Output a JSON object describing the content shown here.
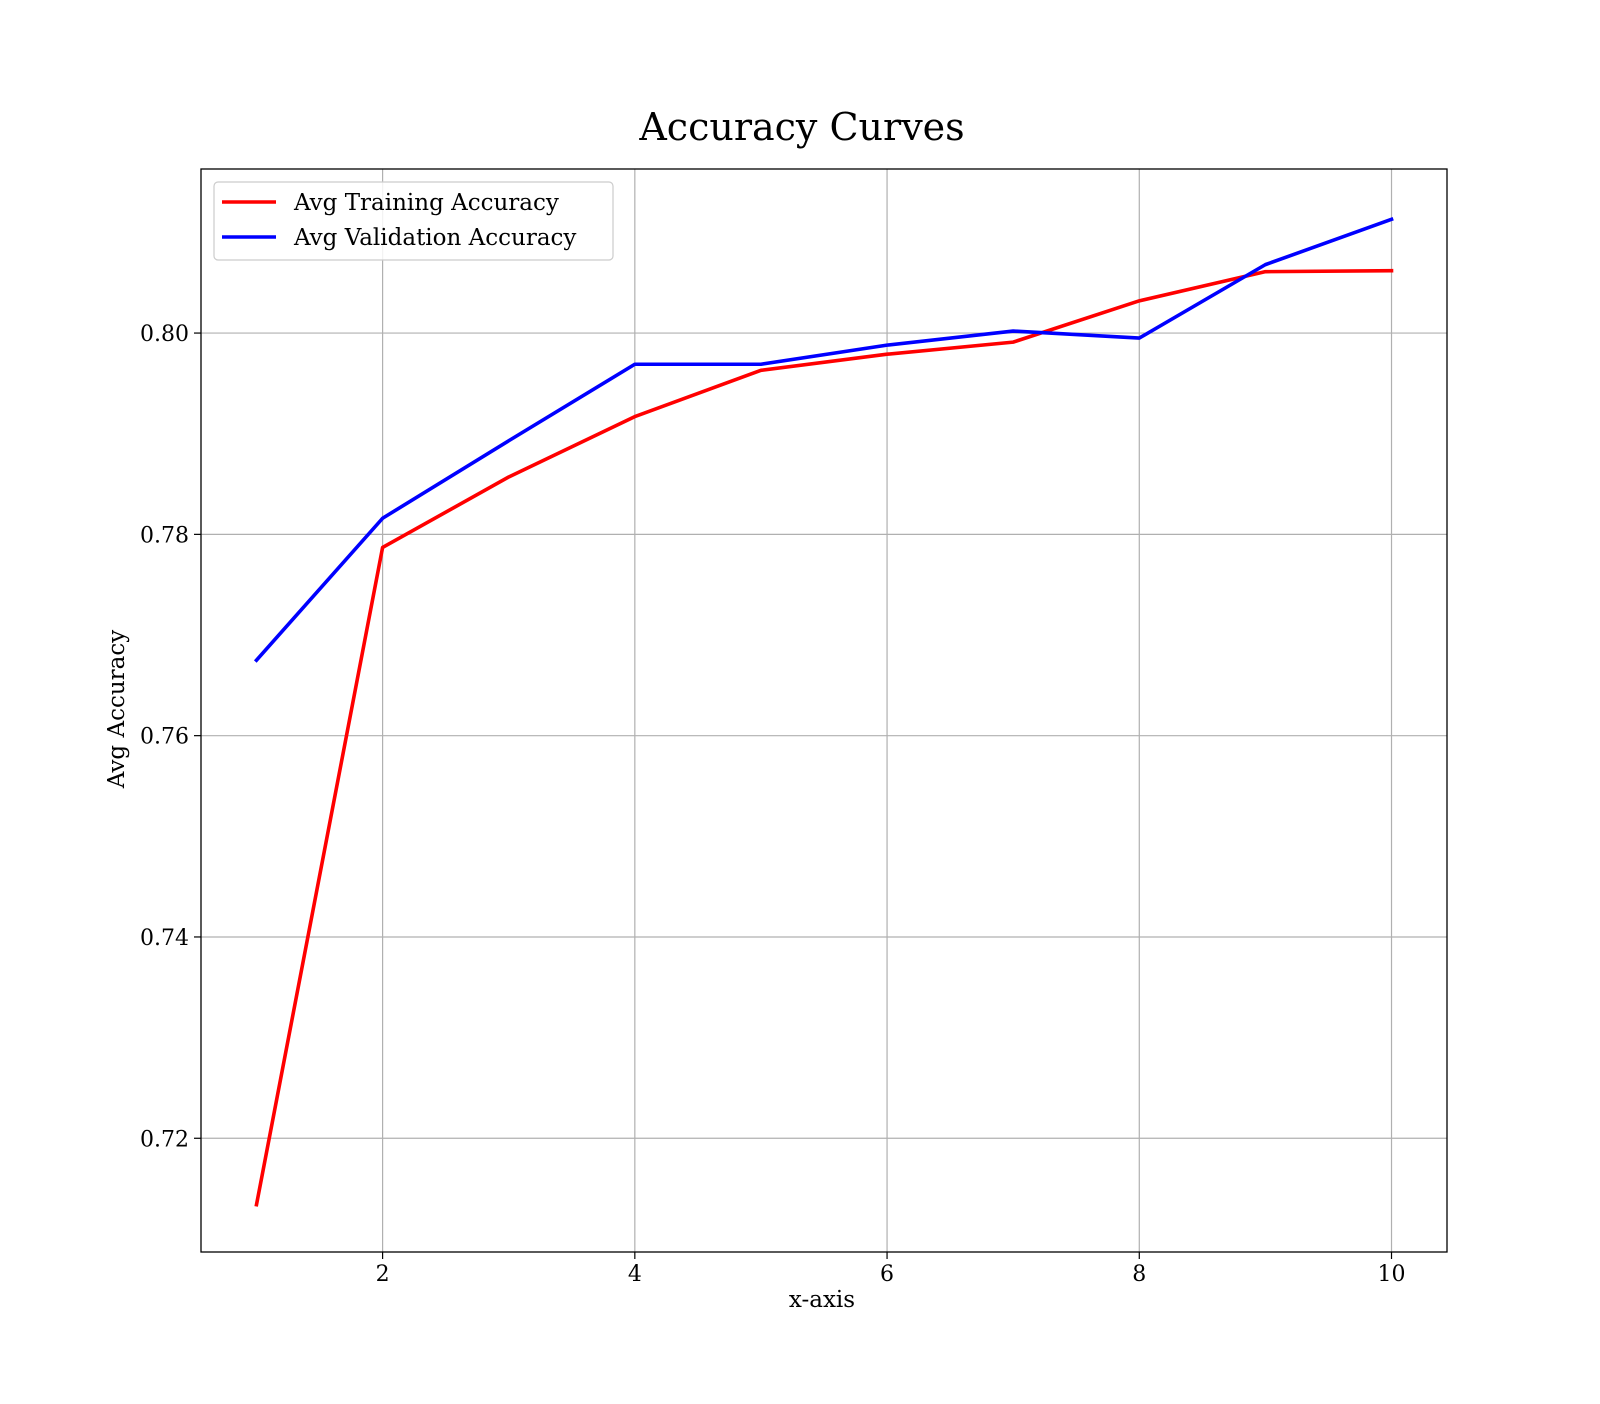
{
  "chart_data": {
    "type": "line",
    "title": "Accuracy Curves",
    "xlabel": "x-axis",
    "ylabel": "Avg Accuracy",
    "xlim": [
      0.56,
      10.44
    ],
    "ylim": [
      0.7087,
      0.8163
    ],
    "xticks": [
      2,
      4,
      6,
      8,
      10
    ],
    "yticks": [
      0.72,
      0.74,
      0.76,
      0.78,
      0.8
    ],
    "ytick_labels": [
      "0.72",
      "0.74",
      "0.76",
      "0.78",
      "0.80"
    ],
    "grid": true,
    "legend_position": "top-left",
    "x": [
      1,
      2,
      3,
      4,
      5,
      6,
      7,
      8,
      9,
      10
    ],
    "series": [
      {
        "name": "Avg Training Accuracy",
        "color": "#ff0000",
        "values": [
          0.7134,
          0.7787,
          0.7857,
          0.7917,
          0.7963,
          0.7979,
          0.7991,
          0.8032,
          0.8061,
          0.8062
        ]
      },
      {
        "name": "Avg Validation Accuracy",
        "color": "#0000ff",
        "values": [
          0.7675,
          0.7816,
          0.7893,
          0.7969,
          0.7969,
          0.7988,
          0.8002,
          0.7995,
          0.8068,
          0.8113
        ]
      }
    ]
  }
}
